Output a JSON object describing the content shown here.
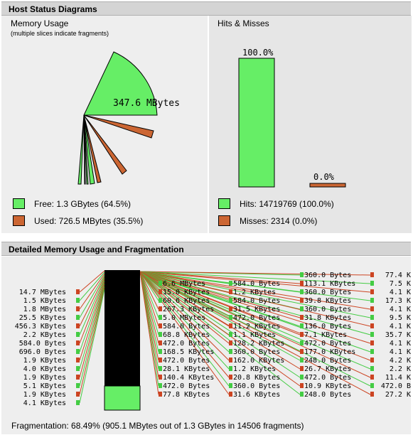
{
  "host_panel": {
    "title": "Host Status Diagrams",
    "memory": {
      "title": "Memory Usage",
      "note": "(multiple slices indicate fragments)",
      "big_label": "347.6 MBytes",
      "free_color": "#66ee66",
      "used_color": "#cc6633",
      "legend_free": "Free: 1.3 GBytes (64.5%)",
      "legend_used": "Used: 726.5 MBytes (35.5%)"
    },
    "hits": {
      "title": "Hits & Misses",
      "hits_pct_label": "100.0%",
      "miss_pct_label": "0.0%",
      "hits_fraction": 1.0,
      "miss_fraction": 0.0,
      "legend_hits": "Hits: 14719769 (100.0%)",
      "legend_misses": "Misses: 2314 (0.0%)"
    }
  },
  "detail_panel": {
    "title": "Detailed Memory Usage and Fragmentation",
    "left_labels": [
      "14.7 MBytes",
      "1.5 KBytes",
      "1.8 MBytes",
      "25.5 KBytes",
      "456.3 KBytes",
      "2.2 KBytes",
      "584.0 Bytes",
      "696.0 Bytes",
      "1.9 KBytes",
      "4.0 KBytes",
      "1.9 KBytes",
      "5.1 KBytes",
      "1.9 KBytes",
      "4.1 KBytes"
    ],
    "col1_labels": [
      "6.6 MBytes",
      "15.0 KBytes",
      "60.6 KBytes",
      "267.3 KBytes",
      "5.0 MBytes",
      "584.0 Bytes",
      "68.8 KBytes",
      "472.0 Bytes",
      "168.5 KBytes",
      "472.0 Bytes",
      "28.1 KBytes",
      "140.4 KBytes",
      "472.0 Bytes",
      "77.8 KBytes"
    ],
    "col2_labels": [
      "584.0 Bytes",
      "1.2 KBytes",
      "584.0 Bytes",
      "31.5 KBytes",
      "472.0 Bytes",
      "11.2 KBytes",
      "1.1 KBytes",
      "128.2 KBytes",
      "360.0 Bytes",
      "162.0 KBytes",
      "1.2 KBytes",
      "20.8 KBytes",
      "360.0 Bytes",
      "31.6 KBytes"
    ],
    "col3_labels": [
      "360.0 Bytes",
      "113.1 KBytes",
      "360.0 Bytes",
      "39.8 KBytes",
      "360.0 Bytes",
      "31.8 KBytes",
      "136.0 Bytes",
      "7.1 KBytes",
      "472.0 Bytes",
      "177.0 KBytes",
      "248.0 Bytes",
      "26.7 KBytes",
      "472.0 Bytes",
      "10.9 KBytes",
      "248.0 Bytes"
    ],
    "col4_labels": [
      "77.4 K",
      "7.5 K",
      "4.1 K",
      "17.3 K",
      "4.1 K",
      "9.5 K",
      "4.1 K",
      "35.7 K",
      "4.1 K",
      "4.1 K",
      "4.2 K",
      "2.2 K",
      "11.4 K",
      "472.0 B",
      "27.2 K"
    ],
    "fragmentation": "Fragmentation: 68.49% (905.1 MBytes out of 1.3 GBytes in 14506 fragments)"
  }
}
